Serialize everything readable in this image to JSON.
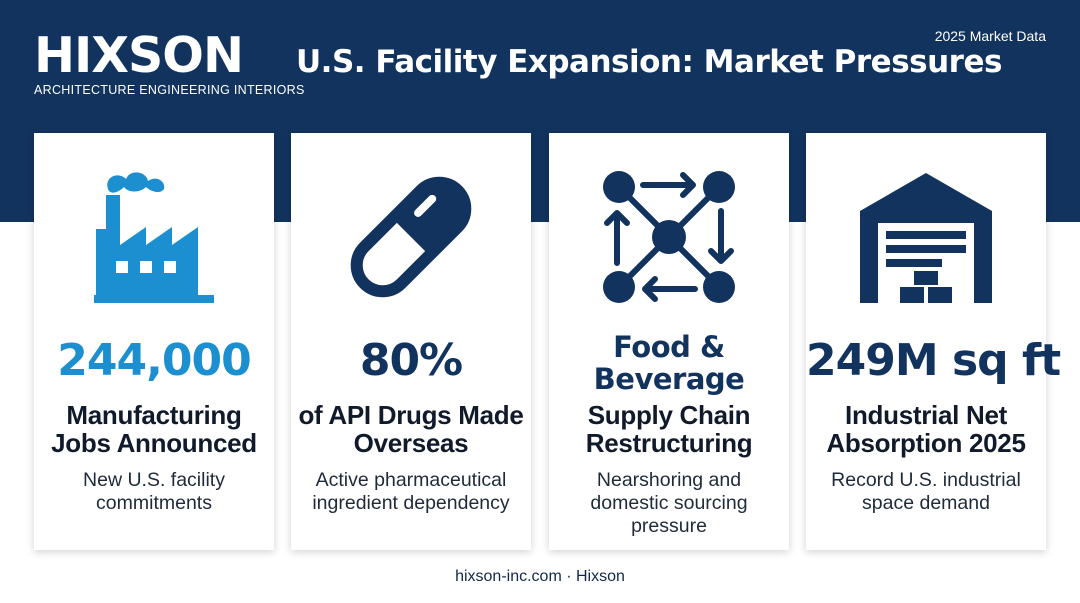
{
  "brand": {
    "name": "HIXSON",
    "tagline": "ARCHITECTURE ENGINEERING INTERIORS"
  },
  "header": {
    "title": "U.S. Facility Expansion: Market Pressures",
    "tag": "2025 Market Data"
  },
  "colors": {
    "navy": "#12335e",
    "accent_blue": "#1b8fd0",
    "white": "#ffffff"
  },
  "cards": [
    {
      "icon": "factory-icon",
      "stat": "244,000",
      "label": "Manufacturing Jobs Announced",
      "desc": "New U.S. facility commitments"
    },
    {
      "icon": "capsule-icon",
      "stat": "80%",
      "label": "of API Drugs Made Overseas",
      "desc": "Active pharmaceutical ingredient dependency"
    },
    {
      "icon": "network-icon",
      "stat": "Food & Beverage",
      "label": "Supply Chain Restructuring",
      "desc": "Nearshoring and domestic sourcing pressure"
    },
    {
      "icon": "warehouse-icon",
      "stat": "249M sq ft",
      "label": "Industrial Net Absorption 2025",
      "desc": "Record U.S. industrial space demand"
    }
  ],
  "footer": {
    "text": "hixson-inc.com · Hixson"
  }
}
